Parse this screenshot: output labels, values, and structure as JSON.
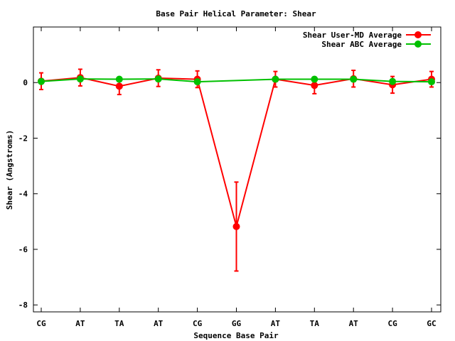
{
  "chart_data": {
    "type": "line",
    "title": "Base Pair Helical Parameter: Shear",
    "xlabel": "Sequence Base Pair",
    "ylabel": "Shear (Angstroms)",
    "categories": [
      "CG",
      "AT",
      "TA",
      "AT",
      "CG",
      "GG",
      "AT",
      "TA",
      "AT",
      "CG",
      "GC"
    ],
    "ylim": [
      -8.25,
      2
    ],
    "yticks": [
      0,
      -2,
      -4,
      -6,
      -8
    ],
    "ytick_labels": [
      "0",
      "-2",
      "-4",
      "-6",
      "-8"
    ],
    "grid": false,
    "legend_position": "top-right",
    "series": [
      {
        "name": "Shear User-MD Average",
        "color": "#ff0000",
        "values": [
          0.05,
          0.18,
          -0.13,
          0.16,
          0.12,
          -5.18,
          0.12,
          -0.1,
          0.14,
          -0.08,
          0.12
        ],
        "errors": [
          0.3,
          0.3,
          0.3,
          0.3,
          0.3,
          1.6,
          0.28,
          0.3,
          0.3,
          0.3,
          0.28
        ]
      },
      {
        "name": "Shear ABC Average",
        "color": "#00c000",
        "values": [
          0.04,
          0.13,
          0.12,
          0.13,
          0.03,
          null,
          0.12,
          0.12,
          0.12,
          0.04,
          0.03
        ]
      }
    ]
  }
}
